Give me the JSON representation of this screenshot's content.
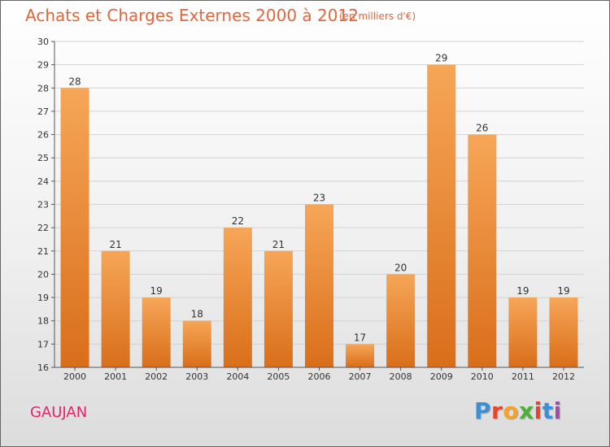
{
  "title": "Achats et Charges Externes 2000 à 2012",
  "unit": "(en milliers d'€)",
  "commune": "GAUJAN",
  "brand": {
    "letters": [
      "P",
      "r",
      "o",
      "x",
      "i",
      "t",
      "i"
    ],
    "colors": [
      "#3a8fd6",
      "#e5452b",
      "#f3a32a",
      "#4fae3a",
      "#e5452b",
      "#3a8fd6",
      "#a24ba8"
    ]
  },
  "colors": {
    "bar_top": "#f6a657",
    "bar_bottom": "#d96e1a",
    "title": "#e2663a",
    "commune": "#e0246c",
    "axis": "#333333"
  },
  "chart_data": {
    "type": "bar",
    "categories": [
      "2000",
      "2001",
      "2002",
      "2003",
      "2004",
      "2005",
      "2006",
      "2007",
      "2008",
      "2009",
      "2010",
      "2011",
      "2012"
    ],
    "values": [
      28,
      21,
      19,
      18,
      22,
      21,
      23,
      17,
      20,
      29,
      26,
      19,
      19
    ],
    "title": "Achats et Charges Externes 2000 à 2012",
    "xlabel": "",
    "ylabel": "",
    "ylim": [
      16,
      30
    ],
    "yticks": [
      16,
      17,
      18,
      19,
      20,
      21,
      22,
      23,
      24,
      25,
      26,
      27,
      28,
      29,
      30
    ],
    "grid": true,
    "data_labels": true
  }
}
